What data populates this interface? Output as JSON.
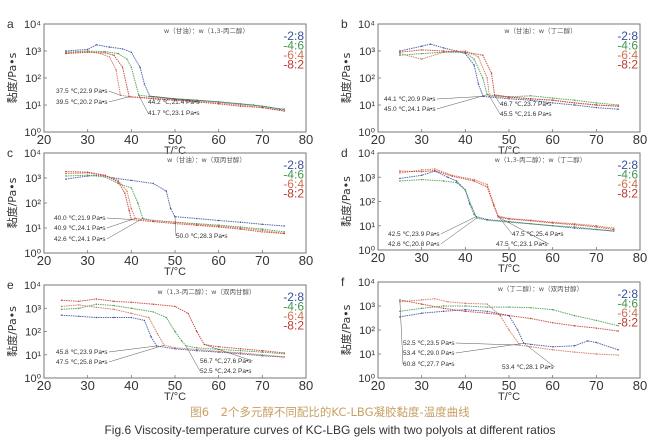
{
  "figure": {
    "caption_cn": "图6　2个多元醇不同配比的KC-LBG凝胶黏度-温度曲线",
    "caption_en": "Fig.6   Viscosity-temperature curves of KC-LBG gels with two polyols at different ratios"
  },
  "chart_data": [
    {
      "panel": "a",
      "type": "line",
      "title": "w（甘油）：w（1,3-丙二醇）",
      "xlabel": "T/°C",
      "ylabel": "黏度/Pa•s",
      "xlim": [
        20,
        80
      ],
      "xticks": [
        20,
        30,
        40,
        50,
        60,
        70,
        80
      ],
      "ylim": [
        1,
        10000
      ],
      "yscale": "log",
      "yticks": [
        "10^0",
        "10^1",
        "10^2",
        "10^3",
        "10^4"
      ],
      "legend": [
        "2:8",
        "4:6",
        "6:4",
        "8:2"
      ],
      "legend_position": "top-right",
      "series": [
        {
          "name": "2:8",
          "color": "#3a4fa0",
          "x": [
            25,
            30,
            32,
            35,
            38,
            40,
            42,
            43,
            44.2,
            50,
            55,
            60,
            65,
            70,
            72,
            74,
            75
          ],
          "y": [
            1000,
            1150,
            1700,
            1400,
            1200,
            900,
            250,
            60,
            21.4,
            17,
            15,
            13,
            11,
            9,
            8,
            7,
            7
          ]
        },
        {
          "name": "4:6",
          "color": "#3f9a4c",
          "x": [
            25,
            30,
            34,
            37,
            39,
            40,
            41.7,
            45,
            50,
            55,
            60,
            65,
            68,
            70,
            72,
            75
          ],
          "y": [
            900,
            1000,
            950,
            800,
            500,
            250,
            23.1,
            20,
            17,
            15,
            13,
            11,
            10,
            9,
            8,
            7
          ]
        },
        {
          "name": "6:4",
          "color": "#d07050",
          "x": [
            25,
            30,
            33,
            35,
            36.5,
            37.5,
            40,
            45,
            50,
            55,
            60,
            65,
            70,
            75
          ],
          "y": [
            850,
            950,
            800,
            600,
            200,
            22.9,
            20,
            18,
            16,
            14,
            12,
            10,
            8,
            6
          ]
        },
        {
          "name": "8:2",
          "color": "#c0392b",
          "x": [
            25,
            30,
            34,
            36,
            38,
            39.5,
            42,
            45,
            50,
            55,
            60,
            65,
            70,
            75
          ],
          "y": [
            800,
            900,
            850,
            700,
            250,
            20.2,
            19,
            17,
            15,
            13,
            11,
            9,
            8,
            6
          ]
        }
      ],
      "annotations": [
        "37.5 ℃,22.9 Pa•s",
        "39.5 ℃,20.2 Pa•s",
        "44.2 ℃,21.4 Pa•s",
        "41.7 ℃,23.1 Pa•s"
      ]
    },
    {
      "panel": "b",
      "type": "line",
      "title": "w（甘油）：w（丁二醇）",
      "xlabel": "T/°C",
      "ylabel": "黏度/Pa•s",
      "xlim": [
        20,
        80
      ],
      "xticks": [
        20,
        30,
        40,
        50,
        60,
        70,
        80
      ],
      "ylim": [
        1,
        10000
      ],
      "yscale": "log",
      "yticks": [
        "10^0",
        "10^1",
        "10^2",
        "10^3",
        "10^4"
      ],
      "legend": [
        "2:8",
        "4:6",
        "6:4",
        "8:2"
      ],
      "legend_position": "top-right",
      "series": [
        {
          "name": "2:8",
          "color": "#3a4fa0",
          "x": [
            25,
            30,
            32,
            35,
            38,
            40,
            42,
            43,
            44.1,
            50,
            55,
            60,
            65,
            70,
            75
          ],
          "y": [
            1000,
            1500,
            1800,
            1300,
            1000,
            800,
            300,
            60,
            20.9,
            17,
            15,
            12,
            10,
            8,
            7
          ]
        },
        {
          "name": "4:6",
          "color": "#3f9a4c",
          "x": [
            25,
            30,
            35,
            40,
            42,
            44,
            45,
            50,
            55,
            60,
            65,
            70,
            75
          ],
          "y": [
            700,
            800,
            900,
            900,
            500,
            100,
            24.1,
            20,
            22,
            18,
            15,
            12,
            10
          ]
        },
        {
          "name": "6:4",
          "color": "#d07050",
          "x": [
            25,
            30,
            35,
            40,
            43,
            45,
            45.5,
            50,
            55,
            60,
            65,
            70,
            75
          ],
          "y": [
            800,
            500,
            900,
            1000,
            600,
            100,
            21.6,
            19,
            17,
            15,
            12,
            10,
            9
          ]
        },
        {
          "name": "8:2",
          "color": "#c0392b",
          "x": [
            25,
            30,
            35,
            40,
            44,
            46,
            46.7,
            50,
            55,
            60,
            65,
            70,
            75
          ],
          "y": [
            900,
            1100,
            1000,
            900,
            700,
            150,
            23.7,
            20,
            17,
            15,
            12,
            10,
            9
          ]
        }
      ],
      "annotations": [
        "44.1 ℃,20.9 Pa•s",
        "45.0 ℃,24.1 Pa•s",
        "46.7 ℃,23.7 Pa•s",
        "45.5 ℃,21.6 Pa•s"
      ]
    },
    {
      "panel": "c",
      "type": "line",
      "title": "w（甘油）：w（双丙甘醇）",
      "xlabel": "T/°C",
      "ylabel": "黏度/Pa•s",
      "xlim": [
        20,
        80
      ],
      "xticks": [
        20,
        30,
        40,
        50,
        60,
        70,
        80
      ],
      "ylim": [
        1,
        10000
      ],
      "yscale": "log",
      "yticks": [
        "10^0",
        "10^1",
        "10^2",
        "10^3",
        "10^4"
      ],
      "legend": [
        "2:8",
        "4:6",
        "6:4",
        "8:2"
      ],
      "legend_position": "top-right",
      "series": [
        {
          "name": "2:8",
          "color": "#3a4fa0",
          "x": [
            25,
            30,
            33,
            36,
            40,
            45,
            48,
            49,
            50,
            55,
            60,
            65,
            70,
            75
          ],
          "y": [
            900,
            1200,
            1300,
            1000,
            800,
            600,
            300,
            60,
            28.3,
            24,
            20,
            17,
            14,
            12
          ]
        },
        {
          "name": "4:6",
          "color": "#3f9a4c",
          "x": [
            25,
            30,
            34,
            37,
            40,
            41.5,
            42.6,
            45,
            50,
            55,
            60,
            65,
            70,
            75
          ],
          "y": [
            1200,
            1300,
            1100,
            600,
            400,
            100,
            24.1,
            20,
            17,
            15,
            13,
            11,
            9,
            7
          ]
        },
        {
          "name": "6:4",
          "color": "#d07050",
          "x": [
            25,
            30,
            34,
            37,
            39,
            40,
            40.9,
            45,
            50,
            55,
            60,
            65,
            70,
            75
          ],
          "y": [
            1500,
            1600,
            1200,
            800,
            300,
            60,
            24.1,
            20,
            17,
            14,
            12,
            10,
            8,
            6
          ]
        },
        {
          "name": "8:2",
          "color": "#c0392b",
          "x": [
            25,
            30,
            34,
            37,
            38.5,
            39.5,
            40.0,
            45,
            50,
            55,
            60,
            65,
            70,
            75
          ],
          "y": [
            1800,
            1700,
            1300,
            700,
            250,
            50,
            21.9,
            18,
            15,
            13,
            11,
            9,
            7,
            6
          ]
        }
      ],
      "annotations": [
        "40.0 ℃,21.9 Pa•s",
        "40.9 ℃,24.1 Pa•s",
        "42.6 ℃,24.1 Pa•s",
        "50.0 ℃,28.3 Pa•s"
      ]
    },
    {
      "panel": "d",
      "type": "line",
      "title": "w（1,3-丙二醇）：w（丁二醇）",
      "xlabel": "T/°C",
      "ylabel": "黏度/Pa•s",
      "xlim": [
        20,
        80
      ],
      "xticks": [
        20,
        30,
        40,
        50,
        60,
        70,
        80
      ],
      "ylim": [
        1,
        10000
      ],
      "yscale": "log",
      "yticks": [
        "10^0",
        "10^1",
        "10^2",
        "10^3",
        "10^4"
      ],
      "legend": [
        "2:8",
        "4:6",
        "6:4",
        "8:2"
      ],
      "legend_position": "top-right",
      "series": [
        {
          "name": "2:8",
          "color": "#3a4fa0",
          "x": [
            25,
            30,
            33,
            36,
            38,
            40,
            41,
            42,
            42.5,
            45,
            50,
            55,
            60,
            65,
            70,
            74
          ],
          "y": [
            900,
            1200,
            1800,
            1000,
            700,
            300,
            80,
            30,
            23.9,
            18,
            15,
            12,
            10,
            8,
            7,
            6
          ]
        },
        {
          "name": "4:6",
          "color": "#3f9a4c",
          "x": [
            25,
            30,
            35,
            38,
            40,
            41.5,
            42.6,
            45,
            50,
            55,
            60,
            65,
            70,
            74
          ],
          "y": [
            700,
            800,
            700,
            600,
            300,
            60,
            20.8,
            17,
            14,
            12,
            10,
            9,
            7,
            6
          ]
        },
        {
          "name": "6:4",
          "color": "#d07050",
          "x": [
            25,
            30,
            33,
            37,
            42,
            45,
            46.5,
            47.5,
            50,
            55,
            60,
            65,
            70,
            74
          ],
          "y": [
            1500,
            2000,
            2200,
            1200,
            800,
            500,
            80,
            25.4,
            20,
            17,
            14,
            12,
            10,
            8
          ]
        },
        {
          "name": "8:2",
          "color": "#c0392b",
          "x": [
            25,
            30,
            33,
            37,
            42,
            45,
            46.5,
            47.5,
            50,
            55,
            60,
            65,
            70,
            74
          ],
          "y": [
            1800,
            1700,
            1900,
            1100,
            700,
            400,
            70,
            23.1,
            19,
            16,
            13,
            11,
            9,
            7
          ]
        }
      ],
      "annotations": [
        "42.5 ℃,23.9 Pa•s",
        "42.6 ℃,20.8 Pa•s",
        "47.5 ℃,25.4 Pa•s",
        "47.5 ℃,23.1 Pa•s"
      ]
    },
    {
      "panel": "e",
      "type": "line",
      "title": "w（1,3-丙二醇）：w（双丙甘醇）",
      "xlabel": "T/°C",
      "ylabel": "黏度/Pa•s",
      "xlim": [
        20,
        80
      ],
      "xticks": [
        20,
        30,
        40,
        50,
        60,
        70,
        80
      ],
      "ylim": [
        1,
        10000
      ],
      "yscale": "log",
      "yticks": [
        "10^0",
        "10^1",
        "10^2",
        "10^3",
        "10^4"
      ],
      "legend": [
        "2:8",
        "4:6",
        "6:4",
        "8:2"
      ],
      "legend_position": "top-right",
      "series": [
        {
          "name": "2:8",
          "color": "#3a4fa0",
          "x": [
            24,
            28,
            32,
            36,
            40,
            43,
            44.5,
            45.8,
            50,
            55,
            60,
            65,
            70,
            75
          ],
          "y": [
            500,
            450,
            400,
            400,
            400,
            300,
            60,
            23.9,
            18,
            15,
            13,
            11,
            9,
            8
          ]
        },
        {
          "name": "4:6",
          "color": "#3f9a4c",
          "x": [
            24,
            28,
            32,
            36,
            40,
            45,
            48,
            50,
            51.5,
            52.5,
            55,
            60,
            65,
            70,
            75
          ],
          "y": [
            900,
            1000,
            1500,
            1300,
            1000,
            700,
            400,
            100,
            40,
            24.2,
            20,
            17,
            15,
            13,
            11
          ]
        },
        {
          "name": "6:4",
          "color": "#d07050",
          "x": [
            24,
            28,
            32,
            36,
            40,
            44,
            46,
            47.5,
            50,
            55,
            60,
            65,
            70,
            75
          ],
          "y": [
            1200,
            1400,
            1100,
            900,
            600,
            400,
            80,
            25.8,
            20,
            17,
            14,
            12,
            10,
            8
          ]
        },
        {
          "name": "8:2",
          "color": "#c0392b",
          "x": [
            24,
            28,
            32,
            36,
            40,
            45,
            50,
            53,
            55,
            56.7,
            60,
            65,
            70,
            75
          ],
          "y": [
            2200,
            2000,
            2500,
            2000,
            1800,
            1500,
            1200,
            600,
            100,
            27.6,
            22,
            18,
            15,
            12
          ]
        }
      ],
      "annotations": [
        "45.8 ℃,23.9 Pa•s",
        "47.5 ℃,25.8 Pa•s",
        "56.7 ℃,27.6 Pa•s",
        "52.5 ℃,24.2 Pa•s"
      ]
    },
    {
      "panel": "f",
      "type": "line",
      "title": "w（丁二醇）：w（双丙甘醇）",
      "xlabel": "T/°C",
      "ylabel": "黏度/Pa•s",
      "xlim": [
        20,
        80
      ],
      "xticks": [
        20,
        30,
        40,
        50,
        60,
        70,
        80
      ],
      "ylim": [
        1,
        10000
      ],
      "yscale": "log",
      "yticks": [
        "10^0",
        "10^1",
        "10^2",
        "10^3",
        "10^4"
      ],
      "legend": [
        "2:8",
        "4:6",
        "6:4",
        "8:2"
      ],
      "legend_position": "top-right",
      "series": [
        {
          "name": "2:8",
          "color": "#3a4fa0",
          "x": [
            25,
            30,
            35,
            40,
            45,
            50,
            52,
            53.4,
            55,
            60,
            65,
            68,
            70,
            75
          ],
          "y": [
            350,
            500,
            600,
            700,
            600,
            400,
            100,
            28.1,
            25,
            20,
            22,
            35,
            30,
            15
          ]
        },
        {
          "name": "4:6",
          "color": "#3f9a4c",
          "x": [
            25,
            30,
            35,
            40,
            45,
            50,
            55,
            60,
            65,
            70,
            75
          ],
          "y": [
            600,
            800,
            1000,
            1000,
            900,
            900,
            850,
            700,
            400,
            250,
            150
          ]
        },
        {
          "name": "6:4",
          "color": "#d07050",
          "x": [
            25,
            30,
            33,
            36,
            40,
            45,
            48,
            50,
            52.5,
            55,
            60,
            65,
            70,
            75
          ],
          "y": [
            1500,
            1800,
            2000,
            1500,
            1300,
            1200,
            400,
            100,
            23.5,
            20,
            15,
            12,
            10,
            9
          ]
        },
        {
          "name": "8:2",
          "color": "#c0392b",
          "x": [
            25,
            30,
            35,
            40,
            45,
            50,
            55,
            60,
            65,
            70,
            75
          ],
          "y": [
            1800,
            1200,
            800,
            600,
            500,
            400,
            300,
            200,
            150,
            120,
            90
          ]
        }
      ],
      "annotations": [
        "52.5 ℃,23.5 Pa•s",
        "53.4 ℃,29.0 Pa•s",
        "60.8 ℃,27.7 Pa•s",
        "53.4 ℃,28.1 Pa•s"
      ]
    }
  ]
}
